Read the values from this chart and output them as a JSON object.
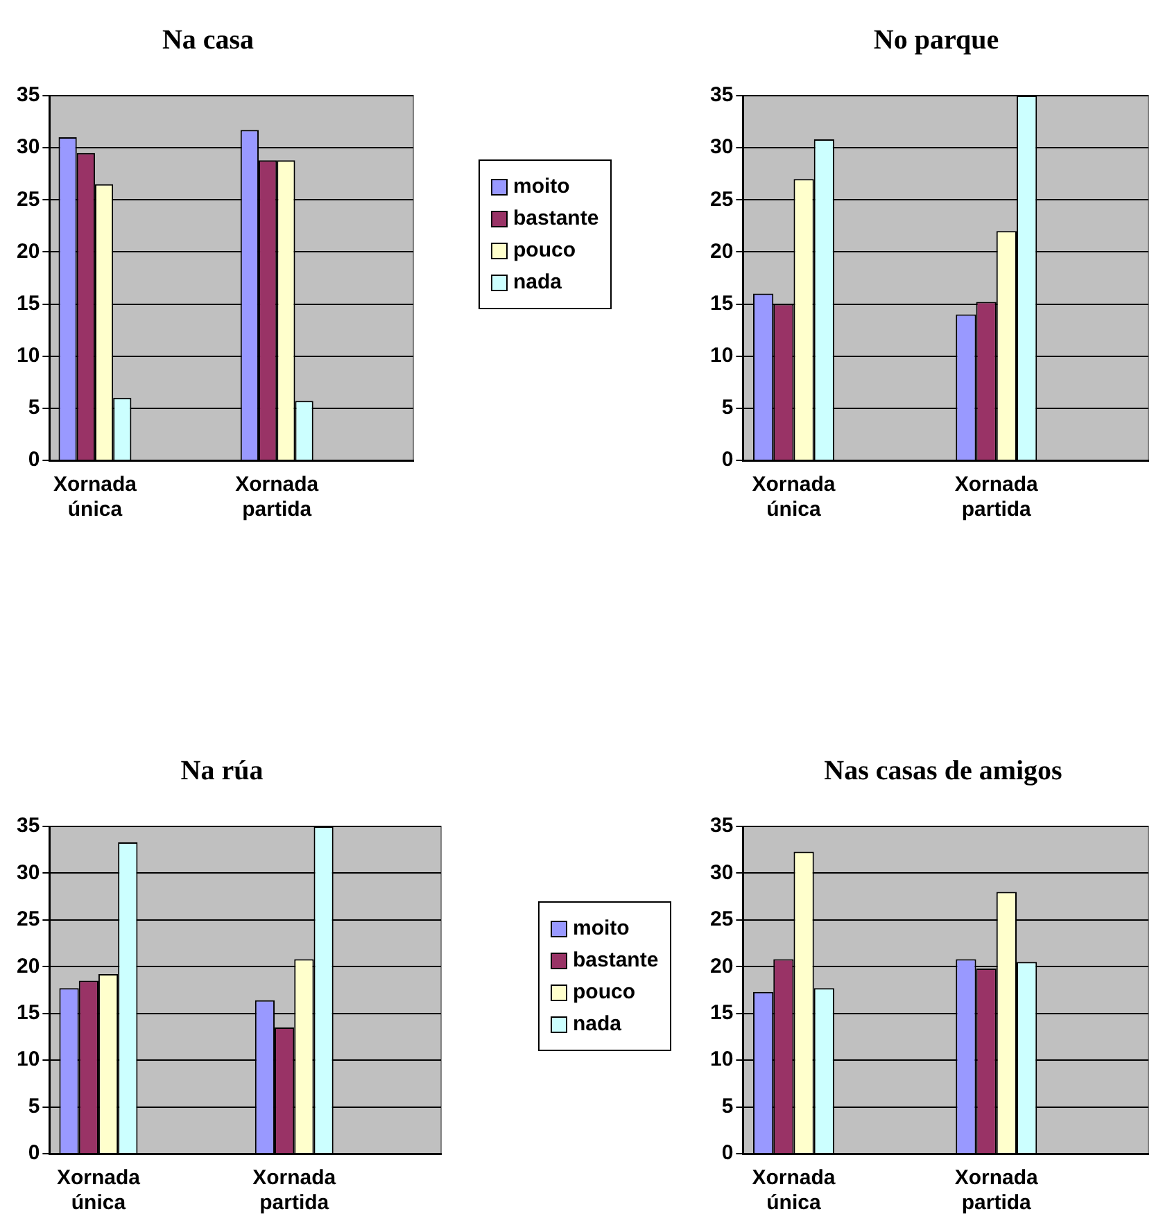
{
  "chart_data": [
    {
      "type": "bar",
      "title": "Na casa",
      "categories": [
        "Xornada única",
        null,
        "Xornada partida",
        null
      ],
      "ylim": [
        0,
        35
      ],
      "yticks": [
        0,
        5,
        10,
        15,
        20,
        25,
        30,
        35
      ],
      "grid": "y",
      "legend": "right",
      "series": [
        {
          "name": "moito",
          "color": "#9999ff",
          "values": [
            31,
            null,
            31.7,
            null
          ]
        },
        {
          "name": "bastante",
          "color": "#993366",
          "values": [
            29.5,
            null,
            28.8,
            null
          ]
        },
        {
          "name": "pouco",
          "color": "#ffffcc",
          "values": [
            26.5,
            null,
            28.8,
            null
          ]
        },
        {
          "name": "nada",
          "color": "#ccffff",
          "values": [
            6,
            null,
            5.7,
            null
          ]
        }
      ]
    },
    {
      "type": "bar",
      "title": "No parque",
      "categories": [
        "Xornada única",
        null,
        "Xornada partida",
        null
      ],
      "ylim": [
        0,
        35
      ],
      "yticks": [
        0,
        5,
        10,
        15,
        20,
        25,
        30,
        35
      ],
      "grid": "y",
      "series": [
        {
          "color": "#9999ff",
          "values": [
            16,
            null,
            14,
            null
          ]
        },
        {
          "color": "#993366",
          "values": [
            15,
            null,
            15.2,
            null
          ]
        },
        {
          "color": "#ffffcc",
          "values": [
            27,
            null,
            22,
            null
          ]
        },
        {
          "color": "#ccffff",
          "values": [
            30.8,
            null,
            35,
            null
          ]
        }
      ]
    },
    {
      "type": "bar",
      "title": "Na rúa",
      "categories": [
        "Xornada única",
        null,
        "Xornada partida",
        null
      ],
      "ylim": [
        0,
        35
      ],
      "yticks": [
        0,
        5,
        10,
        15,
        20,
        25,
        30,
        35
      ],
      "grid": "y",
      "legend": "right",
      "series": [
        {
          "name": "moito",
          "color": "#9999ff",
          "values": [
            17.7,
            null,
            16.4,
            null
          ]
        },
        {
          "name": "bastante",
          "color": "#993366",
          "values": [
            18.5,
            null,
            13.5,
            null
          ]
        },
        {
          "name": "pouco",
          "color": "#ffffcc",
          "values": [
            19.2,
            null,
            20.8,
            null
          ]
        },
        {
          "name": "nada",
          "color": "#ccffff",
          "values": [
            33.3,
            null,
            35,
            null
          ]
        }
      ]
    },
    {
      "type": "bar",
      "title": "Nas casas de amigos",
      "categories": [
        "Xornada única",
        null,
        "Xornada partida",
        null
      ],
      "ylim": [
        0,
        35
      ],
      "yticks": [
        0,
        5,
        10,
        15,
        20,
        25,
        30,
        35
      ],
      "grid": "y",
      "series": [
        {
          "color": "#9999ff",
          "values": [
            17.3,
            null,
            20.8,
            null
          ]
        },
        {
          "color": "#993366",
          "values": [
            20.8,
            null,
            19.8,
            null
          ]
        },
        {
          "color": "#ffffcc",
          "values": [
            32.3,
            null,
            28,
            null
          ]
        },
        {
          "color": "#ccffff",
          "values": [
            17.7,
            null,
            20.5,
            null
          ]
        }
      ]
    }
  ]
}
